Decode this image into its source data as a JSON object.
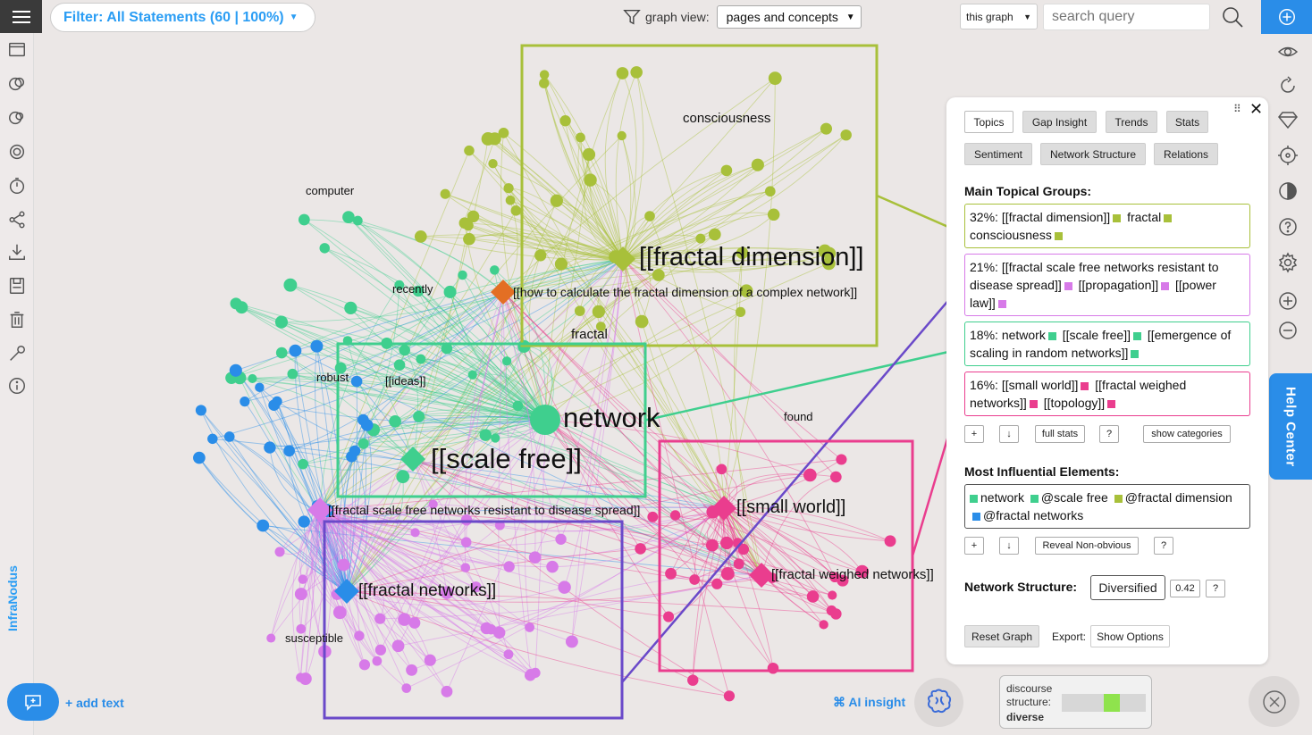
{
  "brand": "InfraNodus",
  "filter": {
    "label": "Filter: All Statements (60 | 100%)"
  },
  "graph_view": {
    "label": "graph view:",
    "selected": "pages and concepts"
  },
  "search": {
    "scope": "this graph",
    "placeholder": "search query"
  },
  "help_center": "Help Center",
  "graph": {
    "labels": [
      {
        "text": "[[fractal dimension]]",
        "size": "big"
      },
      {
        "text": "consciousness",
        "size": "small"
      },
      {
        "text": "computer",
        "size": "tiny"
      },
      {
        "text": "recently",
        "size": "tiny"
      },
      {
        "text": "[[how to calculate the fractal dimension of a complex network]]",
        "size": "small"
      },
      {
        "text": "fractal",
        "size": "small"
      },
      {
        "text": "robust",
        "size": "tiny"
      },
      {
        "text": "[[ideas]]",
        "size": "tiny"
      },
      {
        "text": "network",
        "size": "big"
      },
      {
        "text": "[[scale free]]",
        "size": "big"
      },
      {
        "text": "found",
        "size": "tiny"
      },
      {
        "text": "[[fractal scale free networks resistant to disease spread]]",
        "size": "small"
      },
      {
        "text": "[[small world]]",
        "size": "medium"
      },
      {
        "text": "[[fractal networks]]",
        "size": "medium"
      },
      {
        "text": "[[fractal weighed networks]]",
        "size": "small"
      },
      {
        "text": "susceptible",
        "size": "tiny"
      }
    ],
    "group_colors": {
      "olive": "#a8c03a",
      "teal": "#3fcf8e",
      "violet": "#d77ae8",
      "pink": "#ea3d8e",
      "blue": "#2a8de8",
      "orange": "#e36f24"
    }
  },
  "panel": {
    "tabs": [
      "Topics",
      "Gap Insight",
      "Trends",
      "Stats",
      "Sentiment",
      "Network Structure",
      "Relations"
    ],
    "active_tab": "Topics",
    "drag_icon": "⠿",
    "close_icon": "✕",
    "main_groups_title": "Main Topical Groups:",
    "groups": [
      {
        "pct": "32%:",
        "items": [
          "[[fractal dimension]]",
          "fractal",
          "consciousness"
        ],
        "color": "#a8c03a"
      },
      {
        "pct": "21%:",
        "items": [
          "[[fractal scale free networks resistant to disease spread]]",
          "[[propagation]]",
          "[[power law]]"
        ],
        "color": "#d77ae8"
      },
      {
        "pct": "18%:",
        "items": [
          "network",
          "[[scale free]]",
          "[[emergence of scaling in random networks]]"
        ],
        "color": "#3fcf8e"
      },
      {
        "pct": "16%:",
        "items": [
          "[[small world]]",
          "[[fractal weighed networks]]",
          "[[topology]]"
        ],
        "color": "#ea3d8e"
      }
    ],
    "group_controls": {
      "plus": "+",
      "down": "↓",
      "full_stats": "full stats",
      "help": "?",
      "show_categories": "show categories"
    },
    "influential_title": "Most Influential Elements:",
    "influential": [
      {
        "text": "network",
        "color": "#3fcf8e"
      },
      {
        "text": "@scale free",
        "color": "#3fcf8e"
      },
      {
        "text": "@fractal dimension",
        "color": "#a8c03a"
      },
      {
        "text": "@fractal networks",
        "color": "#2a8de8"
      }
    ],
    "influential_controls": {
      "plus": "+",
      "down": "↓",
      "reveal": "Reveal Non-obvious",
      "help": "?"
    },
    "structure_title": "Network Structure:",
    "structure_value": "Diversified",
    "structure_score": "0.42",
    "structure_help": "?",
    "reset": "Reset Graph",
    "export_label": "Export:",
    "show_options": "Show Options"
  },
  "bottom": {
    "add_text": "+ add text",
    "ai_insight": "⌘ AI insight",
    "discourse": {
      "line1": "discourse",
      "line2": "structure:",
      "value": "diverse",
      "level": 0.6
    }
  }
}
